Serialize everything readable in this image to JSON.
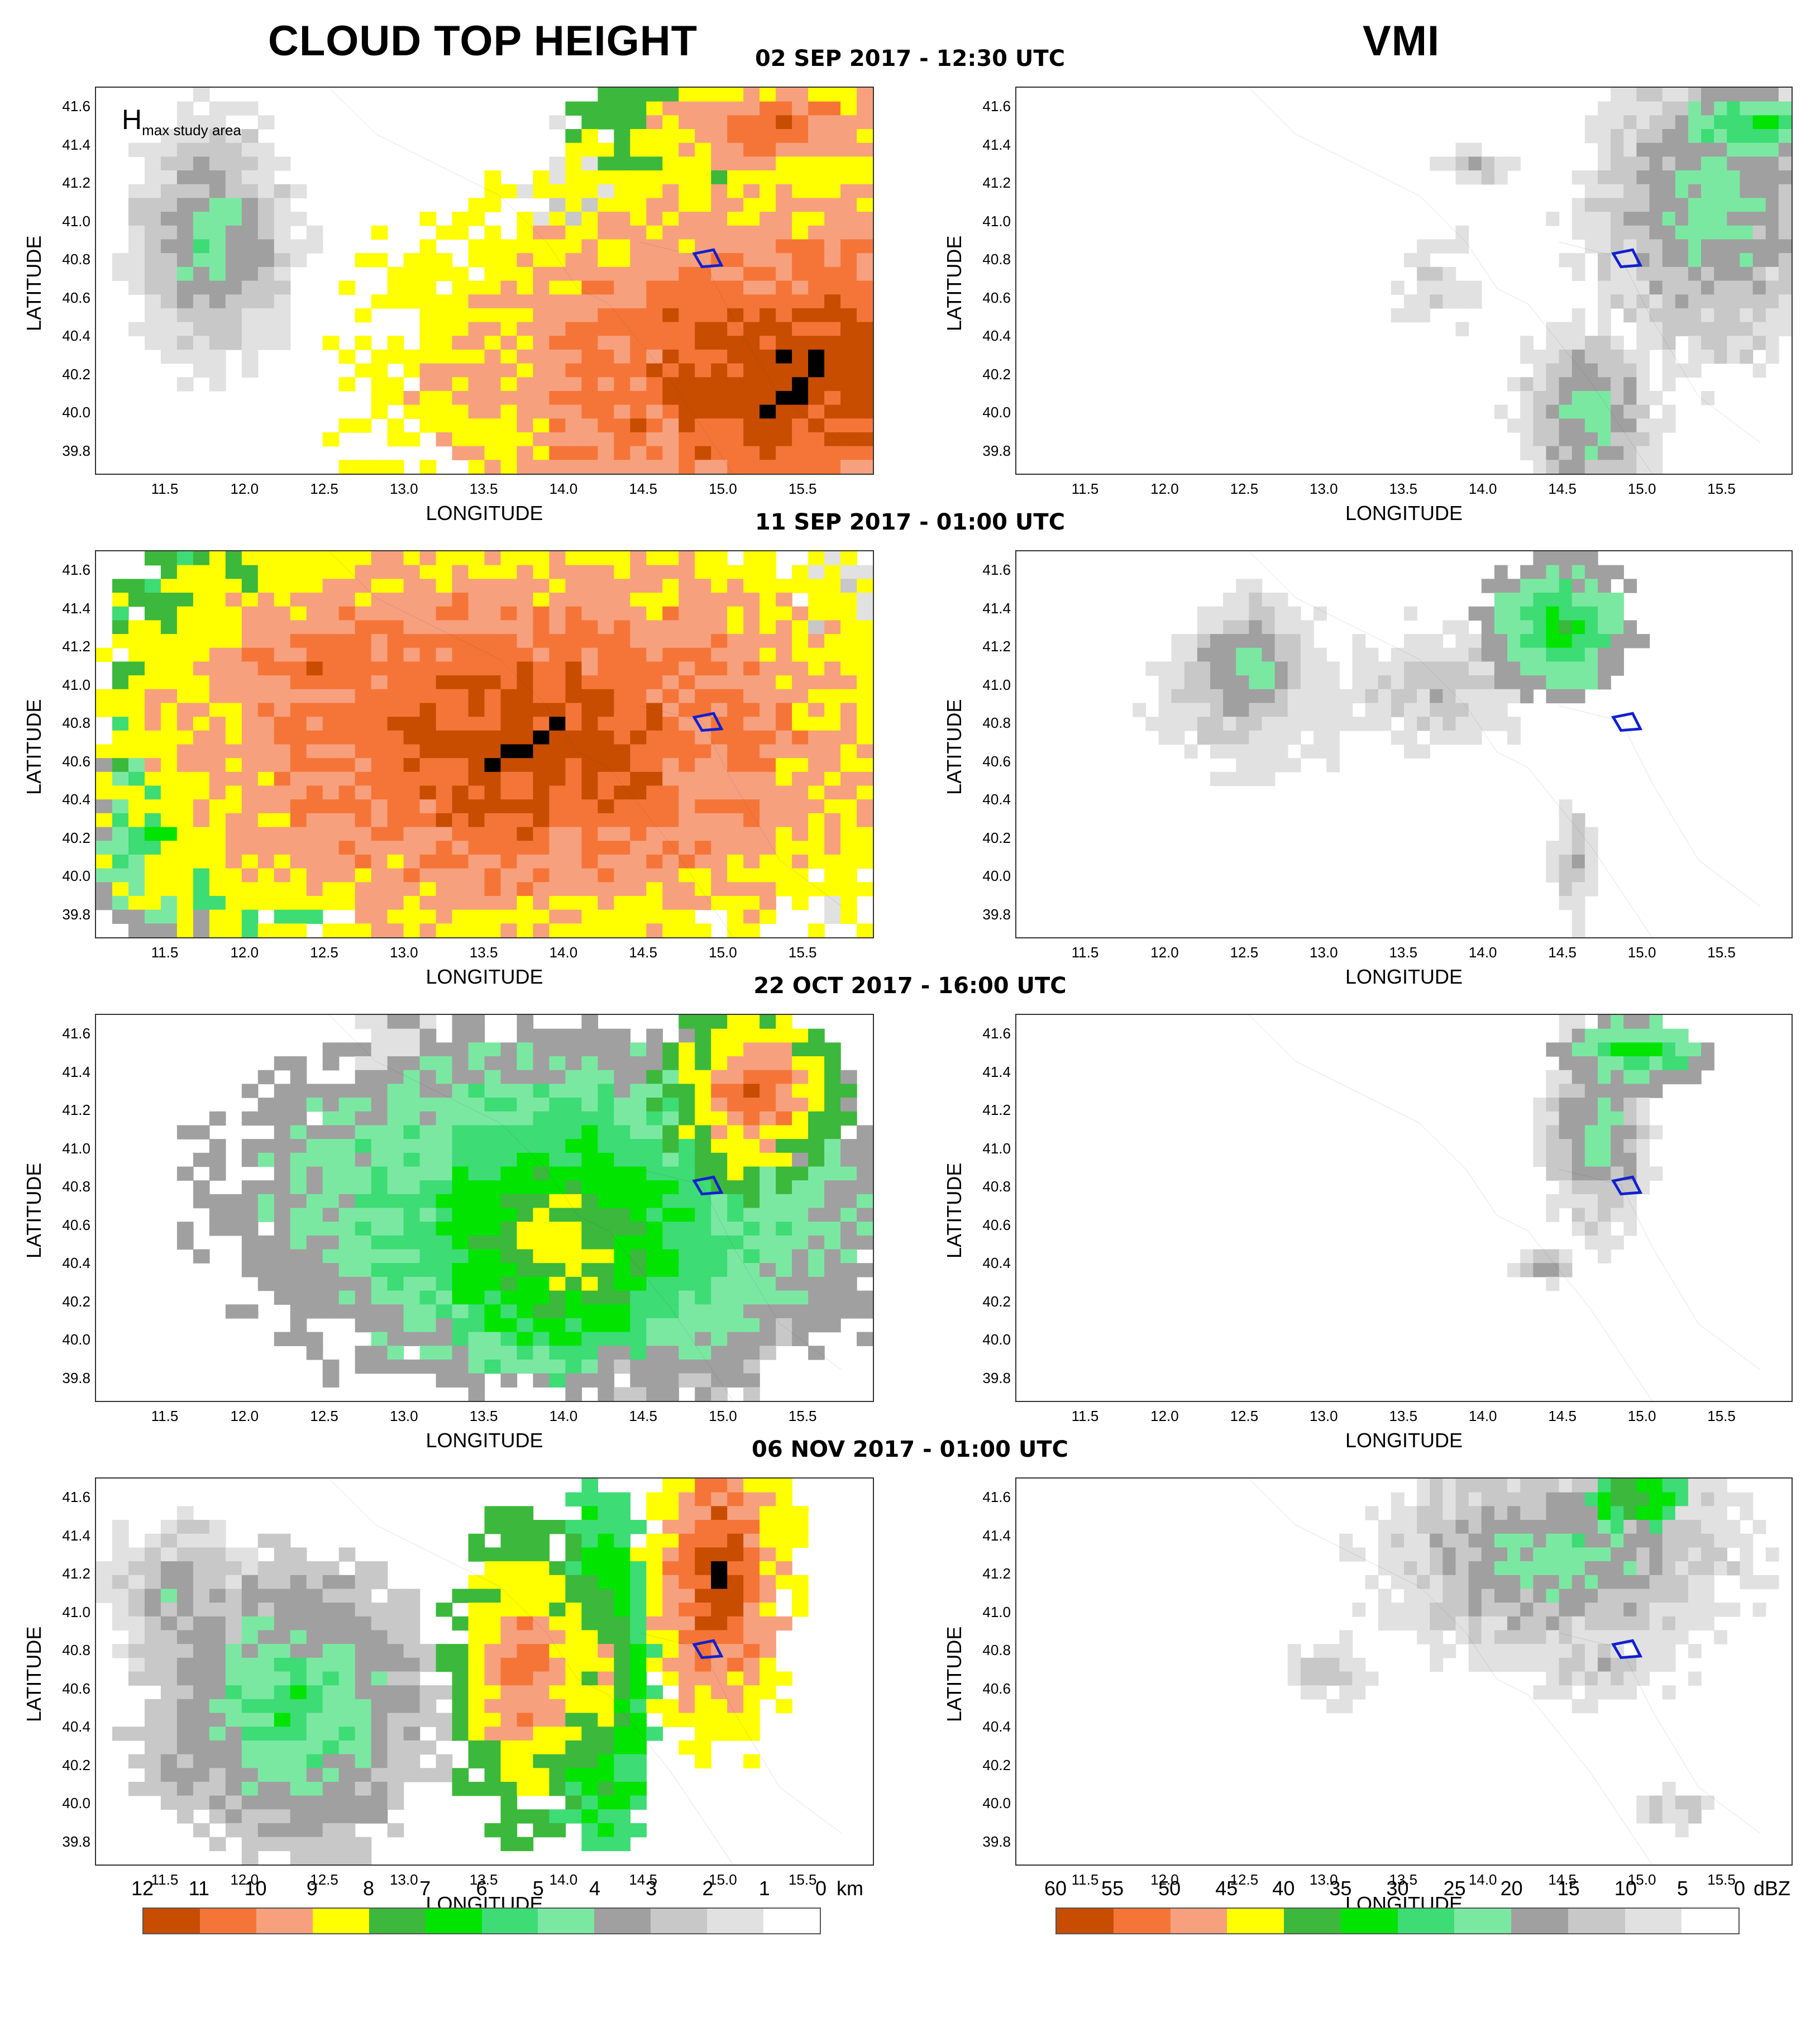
{
  "titles": {
    "cth": "CLOUD TOP HEIGHT",
    "vmi": "VMI"
  },
  "dates": [
    "02 SEP 2017 - 12:30 UTC",
    "11 SEP 2017 - 01:00 UTC",
    "22 OCT 2017 - 16:00 UTC",
    "06 NOV 2017 - 01:00 UTC"
  ],
  "axes": {
    "xlabel": "LONGITUDE",
    "ylabel": "LATITUDE",
    "xticks": [
      "11.5",
      "12.0",
      "12.5",
      "13.0",
      "13.5",
      "14.0",
      "14.5",
      "15.0",
      "15.5"
    ],
    "yticks": [
      "41.6",
      "41.4",
      "41.2",
      "41.0",
      "40.8",
      "40.6",
      "40.4",
      "40.2",
      "40.0",
      "39.8"
    ]
  },
  "hmax_label": {
    "main": "H",
    "sub": "max study area"
  },
  "colorbars": {
    "cth": {
      "ticks": [
        "12",
        "11",
        "10",
        "9",
        "8",
        "7",
        "6",
        "5",
        "4",
        "3",
        "2",
        "1",
        "0"
      ],
      "unit": "km",
      "colors": [
        "#c84d00",
        "#f57538",
        "#f7a07e",
        "#ffff00",
        "#3cb83c",
        "#00e400",
        "#3ddc75",
        "#7be8a2",
        "#a0a0a0",
        "#c8c8c8",
        "#e1e1e1",
        "#ffffff"
      ]
    },
    "vmi": {
      "ticks": [
        "60",
        "55",
        "50",
        "45",
        "40",
        "35",
        "30",
        "25",
        "20",
        "15",
        "10",
        "5",
        "0"
      ],
      "unit": "dBZ",
      "colors": [
        "#c84d00",
        "#f57538",
        "#f7a07e",
        "#ffff00",
        "#3cb83c",
        "#00e400",
        "#3ddc75",
        "#7be8a2",
        "#a0a0a0",
        "#c8c8c8",
        "#e1e1e1",
        "#ffffff"
      ]
    }
  }
}
